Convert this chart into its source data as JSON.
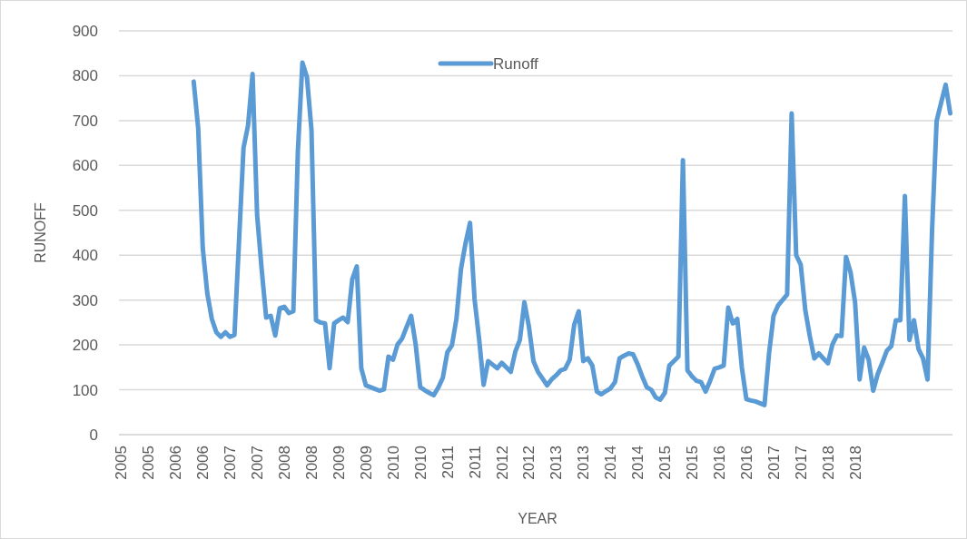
{
  "chart_data": {
    "type": "line",
    "xlabel": "YEAR",
    "ylabel": "RUNOFF",
    "categories": [
      "2005",
      null,
      null,
      null,
      null,
      null,
      "2005",
      null,
      null,
      null,
      null,
      null,
      "2006",
      null,
      null,
      null,
      null,
      null,
      "2006",
      null,
      null,
      null,
      null,
      null,
      "2007",
      null,
      null,
      null,
      null,
      null,
      "2007",
      null,
      null,
      null,
      null,
      null,
      "2008",
      null,
      null,
      null,
      null,
      null,
      "2008",
      null,
      null,
      null,
      null,
      null,
      "2009",
      null,
      null,
      null,
      null,
      null,
      "2009",
      null,
      null,
      null,
      null,
      null,
      "2010",
      null,
      null,
      null,
      null,
      null,
      "2010",
      null,
      null,
      null,
      null,
      null,
      "2011",
      null,
      null,
      null,
      null,
      null,
      "2011",
      null,
      null,
      null,
      null,
      null,
      "2012",
      null,
      null,
      null,
      null,
      null,
      "2012",
      null,
      null,
      null,
      null,
      null,
      "2013",
      null,
      null,
      null,
      null,
      null,
      "2013",
      null,
      null,
      null,
      null,
      null,
      "2014",
      null,
      null,
      null,
      null,
      null,
      "2014",
      null,
      null,
      null,
      null,
      null,
      "2015",
      null,
      null,
      null,
      null,
      null,
      "2015",
      null,
      null,
      null,
      null,
      null,
      "2016",
      null,
      null,
      null,
      null,
      null,
      "2016",
      null,
      null,
      null,
      null,
      null,
      "2017",
      null,
      null,
      null,
      null,
      null,
      "2017",
      null,
      null,
      null,
      null,
      null,
      "2018",
      null,
      null,
      null,
      null,
      null,
      "2018",
      null,
      null,
      null,
      null,
      null,
      null,
      null,
      null,
      null,
      null,
      null,
      null,
      null,
      null,
      null,
      null,
      null,
      null,
      null,
      null,
      null
    ],
    "ylim": [
      0,
      900
    ],
    "yticks": [
      0,
      100,
      200,
      300,
      400,
      500,
      600,
      700,
      800,
      900
    ],
    "grid": "y",
    "legend": "top",
    "marker": "none",
    "line_style": "solid",
    "series": [
      {
        "name": "Runoff",
        "color": "#5b9bd5",
        "values": [
          null,
          null,
          null,
          null,
          null,
          null,
          null,
          null,
          null,
          null,
          null,
          null,
          null,
          null,
          null,
          null,
          787,
          682,
          416,
          315,
          258,
          228,
          218,
          228,
          218,
          222,
          430,
          639,
          689,
          804,
          490,
          369,
          261,
          265,
          221,
          282,
          285,
          271,
          275,
          632,
          829,
          797,
          679,
          255,
          250,
          248,
          148,
          248,
          255,
          261,
          251,
          346,
          375,
          148,
          110,
          106,
          102,
          98,
          101,
          174,
          167,
          201,
          214,
          240,
          265,
          201,
          106,
          99,
          93,
          88,
          105,
          127,
          184,
          199,
          258,
          369,
          426,
          472,
          302,
          214,
          111,
          164,
          156,
          148,
          160,
          150,
          140,
          185,
          211,
          295,
          241,
          164,
          140,
          125,
          110,
          123,
          132,
          143,
          147,
          167,
          245,
          275,
          164,
          170,
          154,
          96,
          90,
          97,
          103,
          117,
          170,
          176,
          181,
          179,
          157,
          130,
          106,
          100,
          83,
          78,
          93,
          154,
          164,
          174,
          612,
          143,
          130,
          120,
          117,
          96,
          120,
          147,
          150,
          154,
          283,
          248,
          258,
          150,
          79,
          76,
          74,
          70,
          66,
          180,
          265,
          288,
          300,
          312,
          716,
          400,
          379,
          278,
          220,
          170,
          181,
          170,
          159,
          201,
          221,
          220,
          396,
          362,
          295,
          123,
          194,
          167,
          98,
          135,
          160,
          187,
          197,
          255,
          255,
          532,
          211,
          255,
          191,
          170,
          123,
          457,
          699,
          740,
          780,
          716
        ]
      }
    ]
  }
}
